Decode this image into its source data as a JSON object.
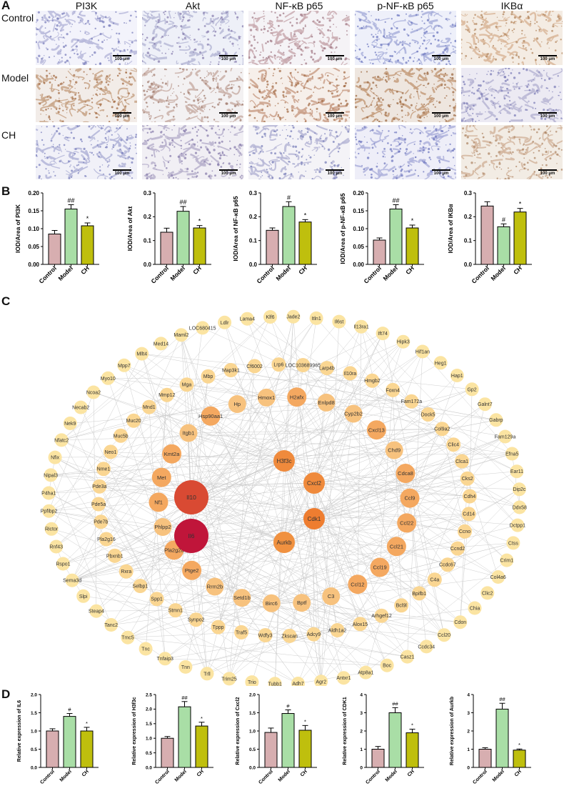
{
  "panels": {
    "A": "A",
    "B": "B",
    "C": "C",
    "D": "D"
  },
  "panel_a": {
    "columns": [
      "PI3K",
      "Akt",
      "NF-κB p65",
      "p-NF-κB p65",
      "IKBα"
    ],
    "rows": [
      "Control",
      "Model",
      "CH"
    ],
    "scale_label": "100 μm"
  },
  "colors": {
    "control": "#d7aeb0",
    "model": "#a9dea6",
    "ch": "#bfbf0d"
  },
  "chart_data": [
    {
      "type": "bar",
      "panel": "B",
      "categories": [
        "Control",
        "Model",
        "CH"
      ],
      "values": [
        0.085,
        0.155,
        0.108
      ],
      "errors": [
        0.01,
        0.012,
        0.008
      ],
      "sig": [
        "",
        "##",
        "*"
      ],
      "ylabel": "IOD/Area of PI3K",
      "ylim": [
        0,
        0.2
      ],
      "yticks": [
        "0.00",
        "0.05",
        "0.10",
        "0.15",
        "0.20"
      ]
    },
    {
      "type": "bar",
      "panel": "B",
      "categories": [
        "Control",
        "Model",
        "CH"
      ],
      "values": [
        0.135,
        0.223,
        0.153
      ],
      "errors": [
        0.017,
        0.02,
        0.01
      ],
      "sig": [
        "",
        "##",
        "*"
      ],
      "ylabel": "IOD/Area of Akt",
      "ylim": [
        0,
        0.3
      ],
      "yticks": [
        "0.0",
        "0.1",
        "0.2",
        "0.3"
      ]
    },
    {
      "type": "bar",
      "panel": "B",
      "categories": [
        "Control",
        "Model",
        "CH"
      ],
      "values": [
        0.143,
        0.243,
        0.178
      ],
      "errors": [
        0.01,
        0.02,
        0.01
      ],
      "sig": [
        "",
        "#",
        "*"
      ],
      "ylabel": "IOD/Area of NF-κB p65",
      "ylim": [
        0,
        0.3
      ],
      "yticks": [
        "0.0",
        "0.1",
        "0.2",
        "0.3"
      ]
    },
    {
      "type": "bar",
      "panel": "B",
      "categories": [
        "Control",
        "Model",
        "CH"
      ],
      "values": [
        0.068,
        0.155,
        0.102
      ],
      "errors": [
        0.006,
        0.012,
        0.008
      ],
      "sig": [
        "",
        "##",
        "*"
      ],
      "ylabel": "IOD/Area of p-NF-κB p65",
      "ylim": [
        0,
        0.2
      ],
      "yticks": [
        "0.00",
        "0.05",
        "0.10",
        "0.15",
        "0.20"
      ]
    },
    {
      "type": "bar",
      "panel": "B",
      "categories": [
        "Control",
        "Model",
        "CH"
      ],
      "values": [
        0.245,
        0.158,
        0.22
      ],
      "errors": [
        0.018,
        0.012,
        0.015
      ],
      "sig": [
        "",
        "#",
        "*"
      ],
      "ylabel": "IOD/Area of IKBα",
      "ylim": [
        0,
        0.3
      ],
      "yticks": [
        "0.0",
        "0.1",
        "0.2",
        "0.3"
      ]
    },
    {
      "type": "bar",
      "panel": "D",
      "categories": [
        "Control",
        "Model",
        "CH"
      ],
      "values": [
        1.0,
        1.4,
        1.0
      ],
      "errors": [
        0.06,
        0.08,
        0.1
      ],
      "sig": [
        "",
        "#",
        "*"
      ],
      "ylabel": "Relative expression of IL6",
      "ylim": [
        0,
        2.0
      ],
      "yticks": [
        "0.0",
        "0.5",
        "1.0",
        "1.5",
        "2.0"
      ]
    },
    {
      "type": "bar",
      "panel": "D",
      "categories": [
        "Control",
        "Model",
        "CH"
      ],
      "values": [
        1.0,
        2.08,
        1.42
      ],
      "errors": [
        0.06,
        0.18,
        0.13
      ],
      "sig": [
        "",
        "##",
        "*"
      ],
      "ylabel": "Relative expression of H3f3c",
      "ylim": [
        0,
        2.5
      ],
      "yticks": [
        "0.0",
        "0.5",
        "1.0",
        "1.5",
        "2.0",
        "2.5"
      ]
    },
    {
      "type": "bar",
      "panel": "D",
      "categories": [
        "Control",
        "Model",
        "CH"
      ],
      "values": [
        0.96,
        1.48,
        1.02
      ],
      "errors": [
        0.12,
        0.1,
        0.13
      ],
      "sig": [
        "",
        "#",
        "*"
      ],
      "ylabel": "Relative expression of Cxcl2",
      "ylim": [
        0,
        2.0
      ],
      "yticks": [
        "0.0",
        "0.5",
        "1.0",
        "1.5",
        "2.0"
      ]
    },
    {
      "type": "bar",
      "panel": "D",
      "categories": [
        "Control",
        "Model",
        "CH"
      ],
      "values": [
        1.0,
        3.0,
        1.9
      ],
      "errors": [
        0.15,
        0.28,
        0.2
      ],
      "sig": [
        "",
        "##",
        "*"
      ],
      "ylabel": "Relative expression of CDK1",
      "ylim": [
        0,
        4
      ],
      "yticks": [
        "0",
        "1",
        "2",
        "3",
        "4"
      ]
    },
    {
      "type": "bar",
      "panel": "D",
      "categories": [
        "Control",
        "Model",
        "CH"
      ],
      "values": [
        1.0,
        3.2,
        0.95
      ],
      "errors": [
        0.08,
        0.32,
        0.06
      ],
      "sig": [
        "",
        "##",
        "*"
      ],
      "ylabel": "Relative expression of Aurkb",
      "ylim": [
        0,
        4
      ],
      "yticks": [
        "0",
        "1",
        "2",
        "3",
        "4"
      ]
    }
  ],
  "network": {
    "hubs": [
      {
        "label": "Il10",
        "color": "#d94a33"
      },
      {
        "label": "Il6",
        "color": "#c0153a"
      }
    ],
    "inner": [
      {
        "label": "H3f3c",
        "color": "#ef8a3c"
      },
      {
        "label": "Cxcl2",
        "color": "#ef8a3c"
      },
      {
        "label": "Cdk1",
        "color": "#ee7d30"
      },
      {
        "label": "Aurkb",
        "color": "#f09140"
      }
    ],
    "ring2": [
      "H2afx",
      "Enlpd8",
      "Cyp2b2",
      "Cxcl13",
      "Chd9",
      "Cdca8",
      "Ccl9",
      "Ccl22",
      "Ccl21",
      "Ccl19",
      "Ccl12",
      "C3",
      "Bptf",
      "Birc6",
      "Setd1b",
      "Rrm2b",
      "Ptge2",
      "Pla2g2a",
      "Phlpp2",
      "Nf1",
      "Met",
      "Kmt2a",
      "Itgb1",
      "Hsp90aa1",
      "Hp",
      "Hmox1"
    ],
    "ring2_strong": [
      "Hsp90aa1",
      "Kmt2a",
      "Met",
      "Nf1",
      "Cdca8",
      "Ccl9",
      "Ccl22",
      "Ccl21",
      "Ccl19",
      "Cxcl13",
      "Ptge2",
      "Pla2g2a",
      "H2afx",
      "Ccl12"
    ],
    "ring3": [
      "Lrp6",
      "LOC103689965",
      "Larp4b",
      "Il10ra",
      "Hmgb2",
      "Foxn4",
      "Fam172a",
      "Dock5",
      "Col9a2",
      "Clic4",
      "Clca1",
      "Cks2",
      "Cdh4",
      "Cd14",
      "Ccno",
      "Ccnd2",
      "Ccdc67",
      "C4a",
      "Bpifb1",
      "Bcl9l",
      "Arhgef12",
      "Alox15",
      "Aldh1a2",
      "Adcy9",
      "Zkscan",
      "Wdfy3",
      "Traf5",
      "Tppp",
      "Synpo2",
      "Stmn1",
      "Spp1",
      "Selbp1",
      "Rxra",
      "Pbxnb1",
      "Pla2g16",
      "Pde7b",
      "Pde5a",
      "Pde3a",
      "Nme1",
      "Neo1",
      "Muc5b",
      "Muc20",
      "Mnd1",
      "Mmp12",
      "Mga",
      "Mbp",
      "Map3k1",
      "Cf6002"
    ],
    "ring4": [
      "Klf6",
      "Jade2",
      "Itln1",
      "Il6st",
      "Il13ra1",
      "Ift74",
      "Hipk3",
      "Hif1an",
      "Heg1",
      "Hap1",
      "Gp2",
      "Galnt7",
      "Gabrp",
      "Fam129a",
      "Efna5",
      "Ear11",
      "Dip2c",
      "Ddx58",
      "Dctpp1",
      "Ctss",
      "Crim1",
      "Col4a6",
      "Clic2",
      "Chia",
      "Cdon",
      "Ccl20",
      "Ccdc34",
      "Casz1",
      "Boc",
      "Atp8a1",
      "Antxr1",
      "Agr2",
      "Adh7",
      "Tubb1",
      "Trio",
      "Trim25",
      "Trll",
      "Tnn",
      "Tnfaip3",
      "Tnc",
      "Tmc5",
      "Tanc2",
      "Steap4",
      "Slpi",
      "Sema3d",
      "Rspo1",
      "Rnf43",
      "Rictor",
      "Ppfibp2",
      "P4ha1",
      "Nipal3",
      "Nfix",
      "Nfatc2",
      "Nek9",
      "Necab2",
      "Ncoa2",
      "Myo10",
      "Mpp7",
      "Mllt4",
      "Med14",
      "Maml2",
      "LOC680415",
      "Ldlr",
      "Lama4"
    ]
  }
}
